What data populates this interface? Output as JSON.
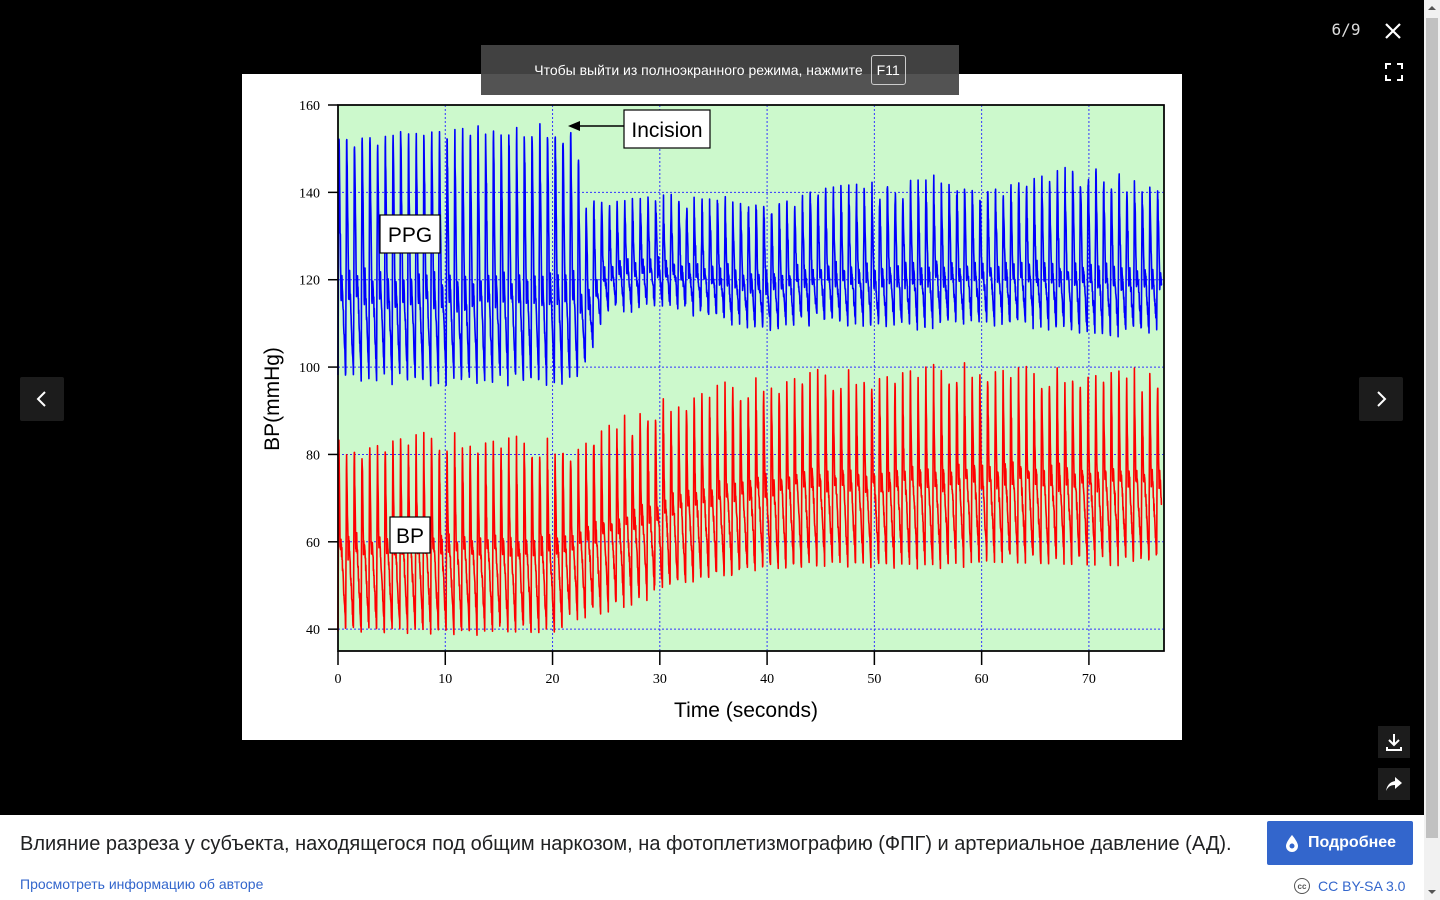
{
  "viewer": {
    "counter": "6/9",
    "close_icon": "close-icon",
    "fullscreen_icon": "fullscreen-icon",
    "prev_icon": "chevron-left-icon",
    "next_icon": "chevron-right-icon",
    "download_icon": "download-icon",
    "share_icon": "share-icon",
    "fullscreen_toast": {
      "text": "Чтобы выйти из полноэкранного режима, нажмите",
      "key": "F11"
    }
  },
  "caption": {
    "text": "Влияние разреза у субъекта, находящегося под общим наркозом, на фотоплетизмографию (ФПГ) и артериальное давление (АД).",
    "more_button": "Подробнее",
    "more_icon": "wikipedia-drop-icon",
    "author_link": "Просмотреть информацию об авторе",
    "license": "CC BY-SA 3.0",
    "license_icon": "cc-icon"
  },
  "colors": {
    "plot_bg": "#ccf9cc",
    "grid": "#3333ff",
    "ppg": "#0000ff",
    "bp": "#ff0000",
    "button_bg": "#3366cc"
  },
  "chart_data": {
    "type": "line",
    "title": "",
    "xlabel": "Time (seconds)",
    "ylabel": "BP(mmHg)",
    "xlim": [
      0,
      77
    ],
    "ylim": [
      35,
      160
    ],
    "xticks": [
      0,
      10,
      20,
      30,
      40,
      50,
      60,
      70
    ],
    "yticks": [
      40,
      60,
      80,
      100,
      120,
      140,
      160
    ],
    "grid": true,
    "annotations": [
      {
        "text": "Incision",
        "x": 21.5,
        "y": 153
      },
      {
        "text": "PPG",
        "x": 6.3,
        "y": 131
      },
      {
        "text": "BP",
        "x": 6.3,
        "y": 62
      }
    ],
    "beat_period_s": 0.72,
    "series": [
      {
        "name": "PPG",
        "color": "#0000ff",
        "envelope": {
          "t": [
            0,
            10,
            20,
            22,
            23,
            25,
            30,
            40,
            45,
            50,
            55,
            60,
            65,
            70,
            77
          ],
          "peak": [
            156,
            155,
            156,
            157,
            140,
            138,
            138,
            138,
            141,
            141,
            143,
            141,
            143,
            146,
            140
          ],
          "trough": [
            98,
            97,
            97,
            97,
            100,
            113,
            115,
            109,
            111,
            110,
            110,
            111,
            110,
            108,
            109
          ]
        }
      },
      {
        "name": "BP",
        "color": "#ff0000",
        "envelope": {
          "t": [
            0,
            10,
            20,
            22,
            25,
            30,
            35,
            40,
            45,
            50,
            55,
            60,
            65,
            70,
            77
          ],
          "peak": [
            83,
            84,
            83,
            82,
            86,
            91,
            95,
            97,
            99,
            99,
            99,
            100,
            99,
            99,
            98
          ],
          "trough": [
            40,
            40,
            40,
            43,
            45,
            49,
            52,
            54,
            55,
            55,
            55,
            56,
            56,
            56,
            56
          ]
        }
      }
    ]
  }
}
